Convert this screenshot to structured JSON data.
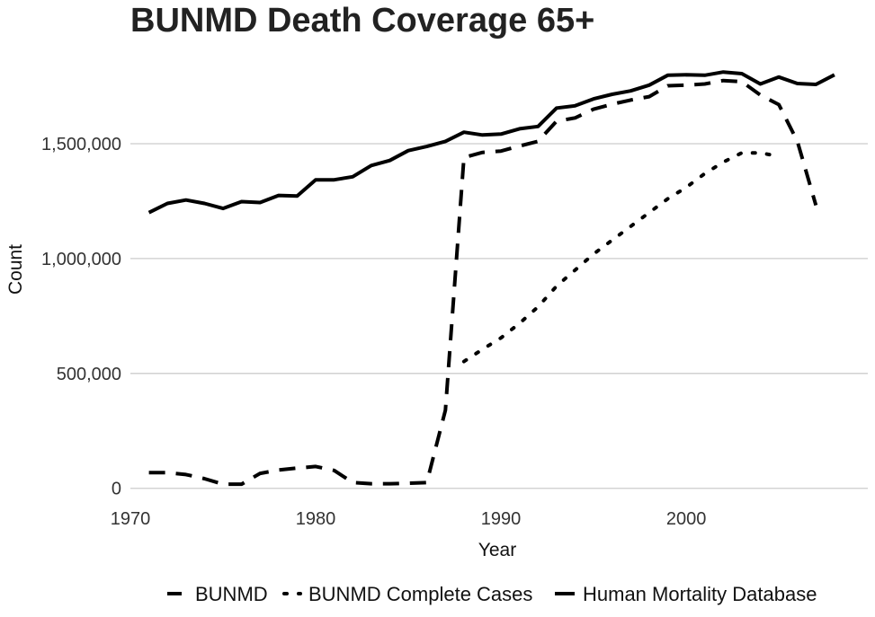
{
  "chart_data": {
    "type": "line",
    "title": "BUNMD Death Coverage 65+",
    "xlabel": "Year",
    "ylabel": "Count",
    "xlim": [
      1970,
      2009.8
    ],
    "ylim": [
      -5000,
      1930000
    ],
    "x_ticks": [
      1970,
      1980,
      1990,
      2000
    ],
    "x_tick_labels": [
      "1970",
      "1980",
      "1990",
      "2000"
    ],
    "y_ticks": [
      0,
      500000,
      1000000,
      1500000
    ],
    "y_tick_labels": [
      "0",
      "500,000",
      "1,000,000",
      "1,500,000"
    ],
    "grid": "horizontal major",
    "legend_position": "bottom",
    "series": [
      {
        "name": "BUNMD",
        "dash": "long-dash",
        "x": [
          1971,
          1972,
          1973,
          1974,
          1975,
          1976,
          1977,
          1978,
          1979,
          1980,
          1981,
          1982,
          1983,
          1984,
          1985,
          1986,
          1987,
          1988,
          1989,
          1990,
          1991,
          1992,
          1993,
          1994,
          1995,
          1996,
          1997,
          1998,
          1999,
          2000,
          2001,
          2002,
          2003,
          2004,
          2005,
          2006,
          2007
        ],
        "y": [
          68000,
          68000,
          60000,
          42000,
          18000,
          18000,
          65000,
          80000,
          88000,
          95000,
          78000,
          25000,
          20000,
          20000,
          22000,
          25000,
          340000,
          1440000,
          1462000,
          1468000,
          1490000,
          1510000,
          1598000,
          1612000,
          1650000,
          1672000,
          1690000,
          1705000,
          1752000,
          1755000,
          1760000,
          1775000,
          1770000,
          1712000,
          1670000,
          1510000,
          1232000
        ]
      },
      {
        "name": "BUNMD Complete Cases",
        "dash": "dotted",
        "x": [
          1988,
          1989,
          1990,
          1991,
          1992,
          1993,
          1994,
          1995,
          1996,
          1997,
          1998,
          1999,
          2000,
          2001,
          2002,
          2003,
          2004,
          2005
        ],
        "y": [
          552000,
          605000,
          655000,
          718000,
          790000,
          880000,
          950000,
          1020000,
          1080000,
          1140000,
          1200000,
          1260000,
          1310000,
          1370000,
          1420000,
          1460000,
          1460000,
          1445000
        ]
      },
      {
        "name": "Human Mortality Database",
        "dash": "solid",
        "x": [
          1971,
          1972,
          1973,
          1974,
          1975,
          1976,
          1977,
          1978,
          1979,
          1980,
          1981,
          1982,
          1983,
          1984,
          1985,
          1986,
          1987,
          1988,
          1989,
          1990,
          1991,
          1992,
          1993,
          1994,
          1995,
          1996,
          1997,
          1998,
          1999,
          2000,
          2001,
          2002,
          2003,
          2004,
          2005,
          2006,
          2007,
          2008
        ],
        "y": [
          1200000,
          1240000,
          1255000,
          1240000,
          1218000,
          1248000,
          1244000,
          1275000,
          1272000,
          1343000,
          1343000,
          1356000,
          1405000,
          1427000,
          1470000,
          1488000,
          1510000,
          1550000,
          1538000,
          1542000,
          1565000,
          1575000,
          1655000,
          1665000,
          1695000,
          1715000,
          1730000,
          1755000,
          1798000,
          1800000,
          1798000,
          1812000,
          1805000,
          1760000,
          1790000,
          1762000,
          1758000,
          1800000
        ]
      }
    ]
  }
}
